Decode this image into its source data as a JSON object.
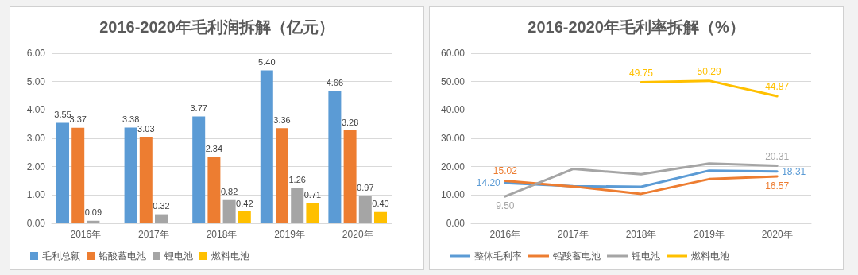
{
  "chart_data": [
    {
      "type": "bar",
      "title": "2016-2020年毛利润拆解（亿元）",
      "categories": [
        "2016年",
        "2017年",
        "2018年",
        "2019年",
        "2020年"
      ],
      "series": [
        {
          "name": "毛利总额",
          "color": "#5b9bd5",
          "values": [
            3.55,
            3.38,
            3.77,
            5.4,
            4.66
          ],
          "value_labels": [
            "3.55",
            "3.38",
            "3.77",
            "5.40",
            "4.66"
          ]
        },
        {
          "name": "铅酸蓄电池",
          "color": "#ed7d31",
          "values": [
            3.37,
            3.03,
            2.34,
            3.36,
            3.28
          ],
          "value_labels": [
            "3.37",
            "3.03",
            "2.34",
            "3.36",
            "3.28"
          ]
        },
        {
          "name": "锂电池",
          "color": "#a5a5a5",
          "values": [
            0.09,
            0.32,
            0.82,
            1.26,
            0.97
          ],
          "value_labels": [
            "0.09",
            "0.32",
            "0.82",
            "1.26",
            "0.97"
          ]
        },
        {
          "name": "燃料电池",
          "color": "#ffc000",
          "values": [
            null,
            null,
            0.42,
            0.71,
            0.4
          ],
          "value_labels": [
            null,
            null,
            "0.42",
            "0.71",
            "0.40"
          ]
        }
      ],
      "ylim": [
        0,
        6
      ],
      "yticks": [
        {
          "value": 0,
          "label": "0.00"
        },
        {
          "value": 1,
          "label": "1.00"
        },
        {
          "value": 2,
          "label": "2.00"
        },
        {
          "value": 3,
          "label": "3.00"
        },
        {
          "value": 4,
          "label": "4.00"
        },
        {
          "value": 5,
          "label": "5.00"
        },
        {
          "value": 6,
          "label": "6.00"
        }
      ],
      "grid": "y",
      "legend": "bottom"
    },
    {
      "type": "line",
      "title": "2016-2020年毛利率拆解（%）",
      "categories": [
        "2016年",
        "2017年",
        "2018年",
        "2019年",
        "2020年"
      ],
      "series": [
        {
          "name": "整体毛利率",
          "color": "#5b9bd5",
          "values": [
            14.2,
            13.1,
            12.9,
            18.6,
            18.31
          ],
          "value_labels": [
            "14.20",
            null,
            null,
            null,
            "18.31"
          ]
        },
        {
          "name": "铅酸蓄电池",
          "color": "#ed7d31",
          "values": [
            15.02,
            13.0,
            10.4,
            15.6,
            16.57
          ],
          "value_labels": [
            "15.02",
            null,
            null,
            null,
            "16.57"
          ]
        },
        {
          "name": "锂电池",
          "color": "#a5a5a5",
          "values": [
            9.5,
            19.2,
            17.3,
            21.1,
            20.31
          ],
          "value_labels": [
            "9.50",
            null,
            null,
            null,
            "20.31"
          ]
        },
        {
          "name": "燃料电池",
          "color": "#ffc000",
          "values": [
            null,
            null,
            49.75,
            50.29,
            44.87
          ],
          "value_labels": [
            null,
            null,
            "49.75",
            "50.29",
            "44.87"
          ]
        }
      ],
      "ylim": [
        0,
        60
      ],
      "yticks": [
        {
          "value": 0,
          "label": "0.00"
        },
        {
          "value": 10,
          "label": "10.00"
        },
        {
          "value": 20,
          "label": "20.00"
        },
        {
          "value": 30,
          "label": "30.00"
        },
        {
          "value": 40,
          "label": "40.00"
        },
        {
          "value": 50,
          "label": "50.00"
        },
        {
          "value": 60,
          "label": "60.00"
        }
      ],
      "grid": "y",
      "legend": "bottom",
      "marker": "none",
      "line_style": "solid"
    }
  ]
}
